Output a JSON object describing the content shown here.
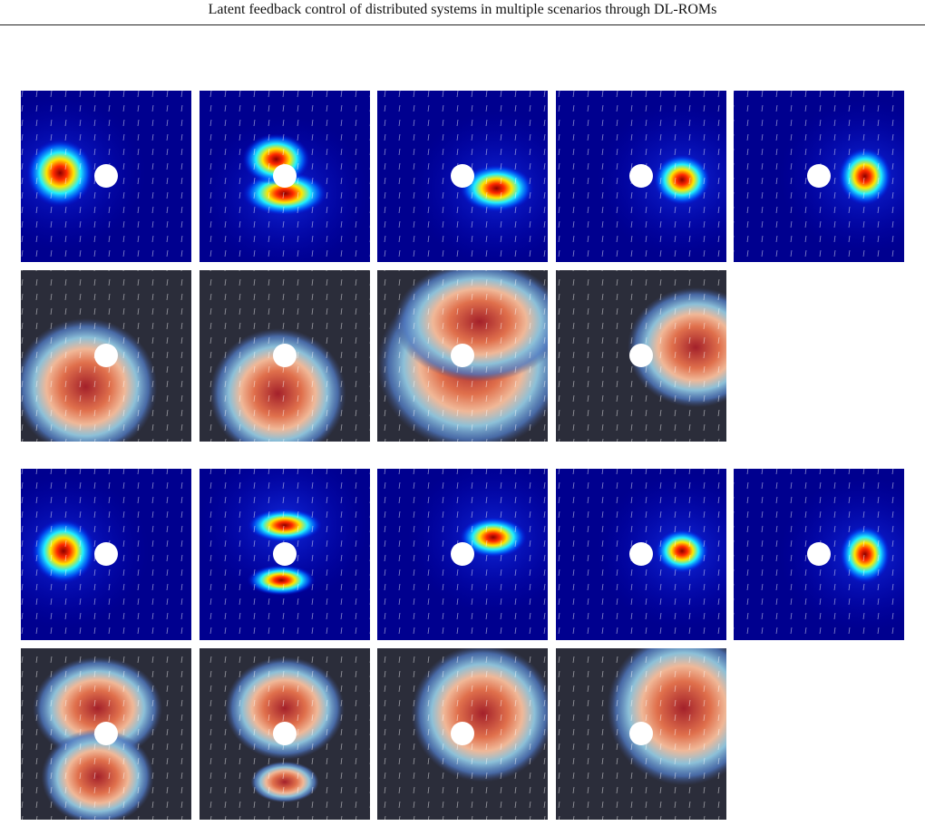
{
  "header": {
    "title": "Latent feedback control of distributed systems in multiple scenarios through DL-ROMs"
  }
}
